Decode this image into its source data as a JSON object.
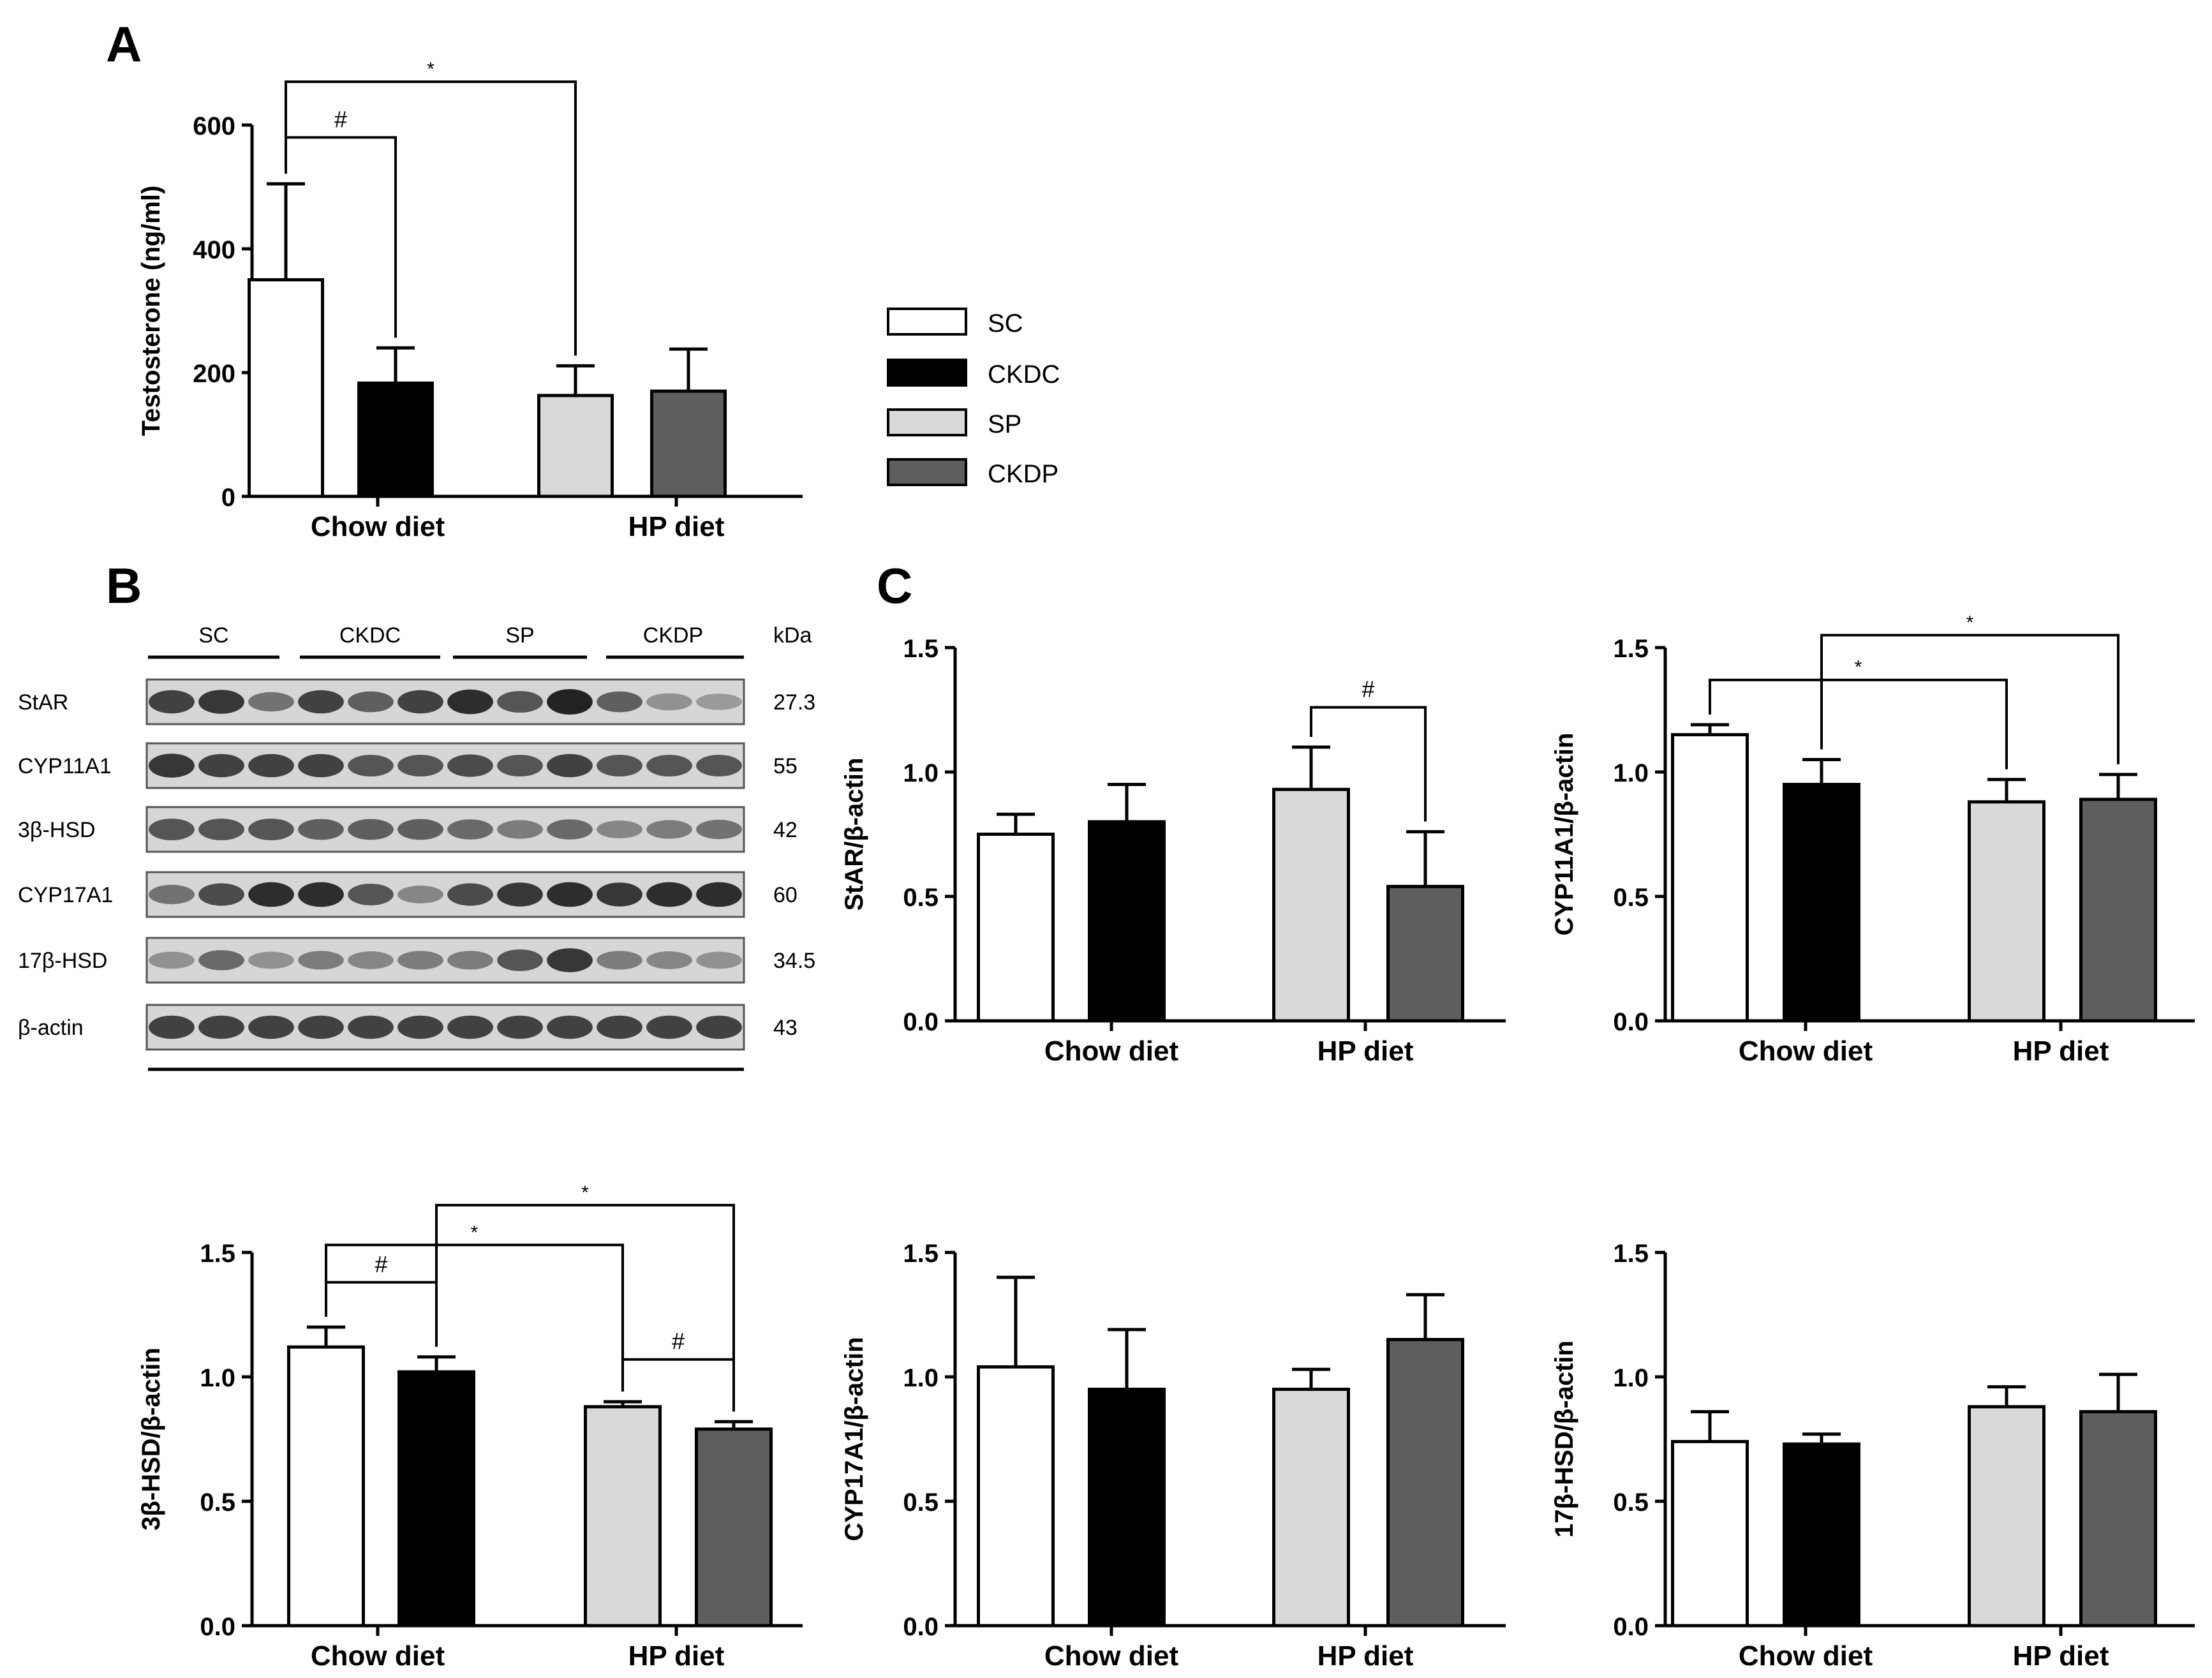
{
  "figure": {
    "panel_labels": {
      "a": "A",
      "b": "B",
      "c": "C"
    },
    "group_labels": [
      "Chow diet",
      "HP diet"
    ],
    "legend": [
      {
        "label": "SC",
        "color": "#ffffff"
      },
      {
        "label": "CKDC",
        "color": "#000000"
      },
      {
        "label": "SP",
        "color": "#d9d9d9"
      },
      {
        "label": "CKDP",
        "color": "#5e5e5e"
      }
    ]
  },
  "western_blot": {
    "kda_header": "kDa",
    "groups": [
      "SC",
      "CKDC",
      "SP",
      "CKDP"
    ],
    "proteins": [
      {
        "name": "StAR",
        "kda": "27.3",
        "intensity": [
          0.85,
          0.9,
          0.6,
          0.85,
          0.7,
          0.85,
          0.95,
          0.75,
          1.0,
          0.7,
          0.45,
          0.4
        ]
      },
      {
        "name": "CYP11A1",
        "kda": "55",
        "intensity": [
          0.9,
          0.85,
          0.85,
          0.85,
          0.75,
          0.75,
          0.8,
          0.75,
          0.85,
          0.75,
          0.75,
          0.75
        ]
      },
      {
        "name": "3β-HSD",
        "kda": "42",
        "intensity": [
          0.75,
          0.75,
          0.75,
          0.7,
          0.7,
          0.7,
          0.65,
          0.55,
          0.65,
          0.5,
          0.55,
          0.6
        ]
      },
      {
        "name": "CYP17A1",
        "kda": "60",
        "intensity": [
          0.6,
          0.8,
          0.95,
          0.95,
          0.75,
          0.5,
          0.8,
          0.9,
          0.95,
          0.9,
          0.95,
          0.95
        ]
      },
      {
        "name": "17β-HSD",
        "kda": "34.5",
        "intensity": [
          0.45,
          0.65,
          0.45,
          0.55,
          0.5,
          0.55,
          0.55,
          0.75,
          0.9,
          0.55,
          0.5,
          0.45
        ]
      },
      {
        "name": "β-actin",
        "kda": "43",
        "intensity": [
          0.85,
          0.85,
          0.85,
          0.85,
          0.85,
          0.85,
          0.85,
          0.85,
          0.85,
          0.85,
          0.85,
          0.85
        ]
      }
    ]
  },
  "chart_data": [
    {
      "id": "A",
      "type": "bar",
      "title": "",
      "ylabel": "Testosterone (ng/ml)",
      "xlabel": "",
      "categories": [
        "Chow diet",
        "HP diet"
      ],
      "ylim": [
        0,
        600
      ],
      "yticks": [
        "0",
        "200",
        "400",
        "600"
      ],
      "ytick_values": [
        0,
        200,
        400,
        600
      ],
      "series": [
        {
          "name": "SC",
          "values": [
            350,
            null
          ],
          "errors": [
            155,
            null
          ]
        },
        {
          "name": "CKDC",
          "values": [
            183,
            null
          ],
          "errors": [
            57,
            null
          ]
        },
        {
          "name": "SP",
          "values": [
            null,
            163
          ],
          "errors": [
            null,
            48
          ]
        },
        {
          "name": "CKDP",
          "values": [
            null,
            170
          ],
          "errors": [
            null,
            68
          ]
        }
      ],
      "annotations": [
        {
          "from": 0,
          "to": 1,
          "level": 580,
          "label": "#"
        },
        {
          "from": 0,
          "to": 2,
          "level": 670,
          "label": "*"
        }
      ]
    },
    {
      "id": "C1",
      "type": "bar",
      "ylabel": "StAR/β-actin",
      "categories": [
        "Chow diet",
        "HP diet"
      ],
      "ylim": [
        0,
        1.5
      ],
      "yticks": [
        "0.0",
        "0.5",
        "1.0",
        "1.5"
      ],
      "ytick_values": [
        0,
        0.5,
        1.0,
        1.5
      ],
      "series": [
        {
          "name": "SC",
          "values": [
            0.75,
            null
          ],
          "errors": [
            0.08,
            null
          ]
        },
        {
          "name": "CKDC",
          "values": [
            0.8,
            null
          ],
          "errors": [
            0.15,
            null
          ]
        },
        {
          "name": "SP",
          "values": [
            null,
            0.93
          ],
          "errors": [
            null,
            0.17
          ]
        },
        {
          "name": "CKDP",
          "values": [
            null,
            0.54
          ],
          "errors": [
            null,
            0.22
          ]
        }
      ],
      "annotations": [
        {
          "from": 2,
          "to": 3,
          "level": 1.26,
          "label": "#"
        }
      ]
    },
    {
      "id": "C2",
      "type": "bar",
      "ylabel": "CYP11A1/β-actin",
      "categories": [
        "Chow diet",
        "HP diet"
      ],
      "ylim": [
        0,
        1.5
      ],
      "yticks": [
        "0.0",
        "0.5",
        "1.0",
        "1.5"
      ],
      "ytick_values": [
        0,
        0.5,
        1.0,
        1.5
      ],
      "series": [
        {
          "name": "SC",
          "values": [
            1.15,
            null
          ],
          "errors": [
            0.04,
            null
          ]
        },
        {
          "name": "CKDC",
          "values": [
            0.95,
            null
          ],
          "errors": [
            0.1,
            null
          ]
        },
        {
          "name": "SP",
          "values": [
            null,
            0.88
          ],
          "errors": [
            null,
            0.09
          ]
        },
        {
          "name": "CKDP",
          "values": [
            null,
            0.89
          ],
          "errors": [
            null,
            0.1
          ]
        }
      ],
      "annotations": [
        {
          "from": 0,
          "to": 2,
          "level": 1.37,
          "label": "*"
        },
        {
          "from": 1,
          "to": 3,
          "level": 1.55,
          "label": "*"
        }
      ]
    },
    {
      "id": "C3",
      "type": "bar",
      "ylabel": "3β-HSD/β-actin",
      "categories": [
        "Chow diet",
        "HP diet"
      ],
      "ylim": [
        0,
        1.5
      ],
      "yticks": [
        "0.0",
        "0.5",
        "1.0",
        "1.5"
      ],
      "ytick_values": [
        0,
        0.5,
        1.0,
        1.5
      ],
      "series": [
        {
          "name": "SC",
          "values": [
            1.12,
            null
          ],
          "errors": [
            0.08,
            null
          ]
        },
        {
          "name": "CKDC",
          "values": [
            1.02,
            null
          ],
          "errors": [
            0.06,
            null
          ]
        },
        {
          "name": "SP",
          "values": [
            null,
            0.88
          ],
          "errors": [
            null,
            0.02
          ]
        },
        {
          "name": "CKDP",
          "values": [
            null,
            0.79
          ],
          "errors": [
            null,
            0.03
          ]
        }
      ],
      "annotations": [
        {
          "from": 0,
          "to": 1,
          "level": 1.38,
          "label": "#"
        },
        {
          "from": 0,
          "to": 2,
          "level": 1.53,
          "label": "*"
        },
        {
          "from": 1,
          "to": 3,
          "level": 1.69,
          "label": "*"
        },
        {
          "from": 2,
          "to": 3,
          "level": 1.07,
          "label": "#"
        }
      ]
    },
    {
      "id": "C4",
      "type": "bar",
      "ylabel": "CYP17A1/β-actin",
      "categories": [
        "Chow diet",
        "HP diet"
      ],
      "ylim": [
        0,
        1.5
      ],
      "yticks": [
        "0.0",
        "0.5",
        "1.0",
        "1.5"
      ],
      "ytick_values": [
        0,
        0.5,
        1.0,
        1.5
      ],
      "series": [
        {
          "name": "SC",
          "values": [
            1.04,
            null
          ],
          "errors": [
            0.36,
            null
          ]
        },
        {
          "name": "CKDC",
          "values": [
            0.95,
            null
          ],
          "errors": [
            0.24,
            null
          ]
        },
        {
          "name": "SP",
          "values": [
            null,
            0.95
          ],
          "errors": [
            null,
            0.08
          ]
        },
        {
          "name": "CKDP",
          "values": [
            null,
            1.15
          ],
          "errors": [
            null,
            0.18
          ]
        }
      ],
      "annotations": []
    },
    {
      "id": "C5",
      "type": "bar",
      "ylabel": "17β-HSD/β-actin",
      "categories": [
        "Chow diet",
        "HP diet"
      ],
      "ylim": [
        0,
        1.5
      ],
      "yticks": [
        "0.0",
        "0.5",
        "1.0",
        "1.5"
      ],
      "ytick_values": [
        0,
        0.5,
        1.0,
        1.5
      ],
      "series": [
        {
          "name": "SC",
          "values": [
            0.74,
            null
          ],
          "errors": [
            0.12,
            null
          ]
        },
        {
          "name": "CKDC",
          "values": [
            0.73,
            null
          ],
          "errors": [
            0.04,
            null
          ]
        },
        {
          "name": "SP",
          "values": [
            null,
            0.88
          ],
          "errors": [
            null,
            0.08
          ]
        },
        {
          "name": "CKDP",
          "values": [
            null,
            0.86
          ],
          "errors": [
            null,
            0.15
          ]
        }
      ],
      "annotations": []
    }
  ]
}
